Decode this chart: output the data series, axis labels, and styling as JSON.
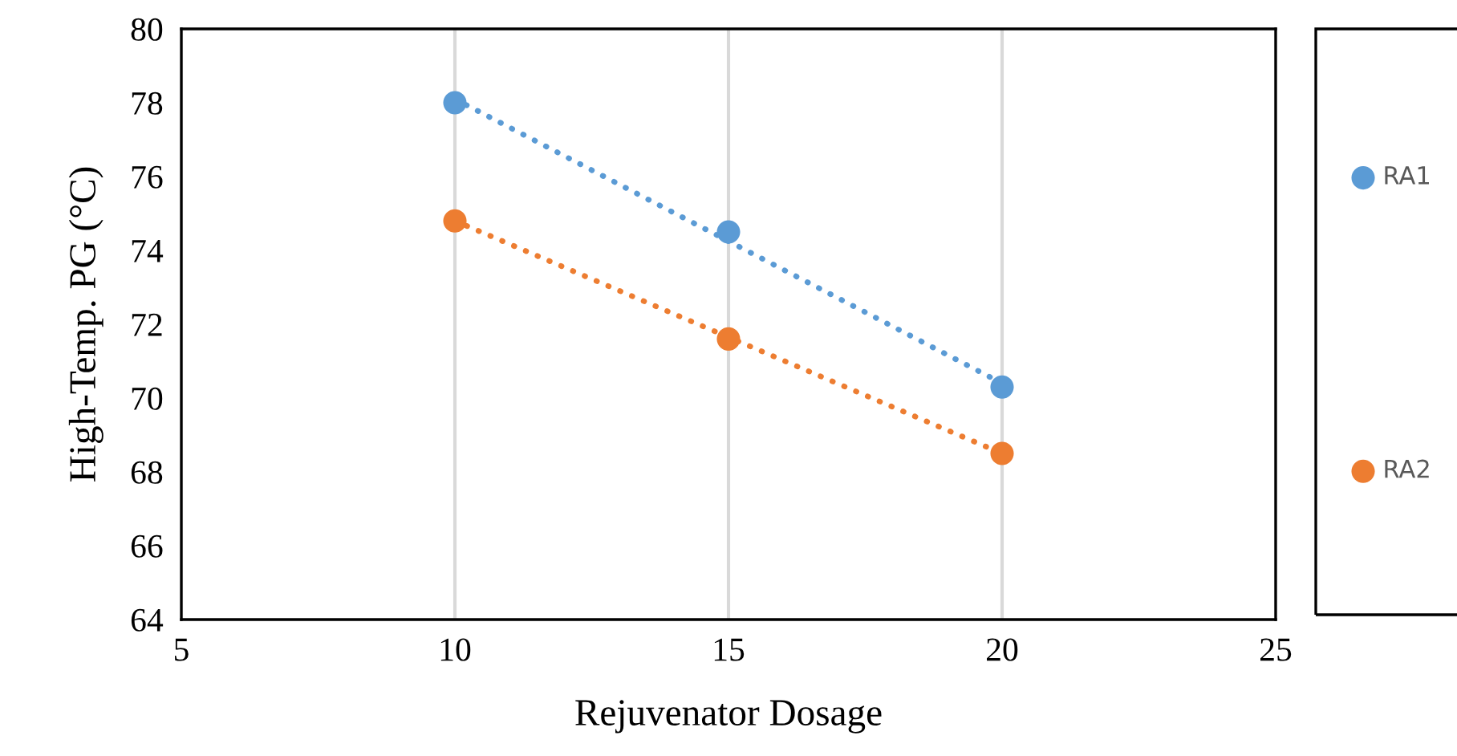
{
  "chart_data": {
    "type": "scatter",
    "xlabel": "Rejuvenator Dosage",
    "ylabel": "High-Temp. PG (°C)",
    "xlim": [
      5,
      25
    ],
    "xticks": [
      5,
      10,
      15,
      20,
      25
    ],
    "ylim": [
      64,
      80
    ],
    "yticks": [
      64,
      66,
      68,
      70,
      72,
      74,
      76,
      78,
      80
    ],
    "grid": "x",
    "legend": "right",
    "marker": "circle",
    "series": [
      {
        "name": "RA1",
        "color": "#5b9bd5",
        "x": [
          10,
          15,
          20
        ],
        "values": [
          78.0,
          74.5,
          70.3
        ]
      },
      {
        "name": "RA2",
        "color": "#ed7d31",
        "x": [
          10,
          15,
          20
        ],
        "values": [
          74.8,
          71.6,
          68.5
        ]
      },
      {
        "type": "line",
        "color": "#5b9bd5",
        "line_style": "dotted",
        "marker": "none",
        "x": [
          10,
          20
        ],
        "values": [
          78.1,
          70.4
        ]
      },
      {
        "type": "line",
        "color": "#ed7d31",
        "line_style": "dotted",
        "marker": "none",
        "x": [
          10,
          20
        ],
        "values": [
          74.8,
          68.5
        ]
      }
    ]
  }
}
